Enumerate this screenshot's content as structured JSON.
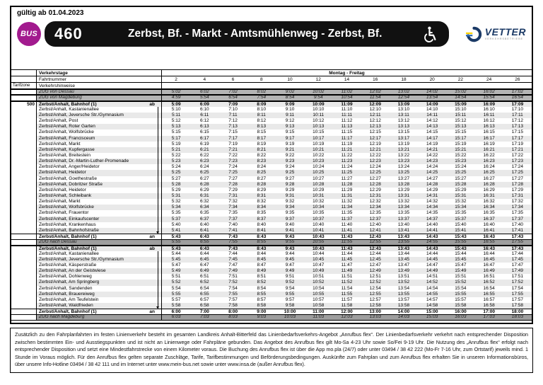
{
  "page": {
    "valid_from": "gültig ab 01.04.2023"
  },
  "header": {
    "bus_badge": "BUS",
    "line_number": "460",
    "route_title": "Zerbst, Bf. - Markt - Amtsmühlenweg - Zerbst, Bf.",
    "wheelchair_icon": "wheelchair-accessible",
    "operator_name": "VETTER",
    "operator_tagline": "VERKEHRSBETRIEBE"
  },
  "colors": {
    "badge_magenta": "#a21a8e",
    "bar_black": "#111111",
    "navy": "#1b3a66",
    "stripe_yellow": "#ffd200",
    "stripe_blue": "#2e6db6",
    "row_alt_gray": "#e9e9e9",
    "train_row_gray": "#b4b4b4",
    "train_row_dark_gray": "#9e9e9e"
  },
  "timetable": {
    "labels": {
      "verkehrstage": "Verkehrstage",
      "fahrtnummer": "Fahrtnummer",
      "tarifzone": "Tarifzone",
      "verkehrshinweise": "Verkehrshinweise"
    },
    "service_days": "Montag - Freitag",
    "trip_numbers": [
      "2",
      "4",
      "6",
      "8",
      "10",
      "12",
      "14",
      "16",
      "18",
      "20",
      "22",
      "24",
      "26"
    ],
    "rows": [
      {
        "type": "train",
        "label": "ZUG von Dessau",
        "times": [
          "5:02",
          "6:02",
          "7:02",
          "8:02",
          "9:02",
          "10:02",
          "11:02",
          "12:02",
          "13:02",
          "14:02",
          "15:02",
          "16:02",
          "17:02"
        ]
      },
      {
        "type": "train",
        "label": "ZUG von Magdeburg",
        "times": [
          "4:59",
          "5:54",
          "6:54",
          "7:54",
          "8:54",
          "9:54",
          "10:54",
          "11:54",
          "12:54",
          "13:54",
          "14:54",
          "15:54",
          "16:54"
        ]
      },
      {
        "type": "stop",
        "label": "Zerbst/Anhalt, Bahnhof (1)",
        "tag": "ab",
        "bold": true,
        "zone": "500",
        "times": [
          "5:09",
          "6:09",
          "7:09",
          "8:09",
          "9:09",
          "10:09",
          "11:09",
          "12:09",
          "13:09",
          "14:09",
          "15:09",
          "16:09",
          "17:09"
        ]
      },
      {
        "type": "stop",
        "label": "Zerbst/Anhalt, Kastanienallee",
        "times": [
          "5:10",
          "6:10",
          "7:10",
          "8:10",
          "9:10",
          "10:10",
          "11:10",
          "12:10",
          "13:10",
          "14:10",
          "15:10",
          "16:10",
          "17:10"
        ]
      },
      {
        "type": "stop",
        "label": "Zerbst/Anhalt, Jeversche Str./Gymnasium",
        "times": [
          "5:11",
          "6:11",
          "7:11",
          "8:11",
          "9:11",
          "10:11",
          "11:11",
          "12:11",
          "13:11",
          "14:11",
          "15:11",
          "16:11",
          "17:11"
        ]
      },
      {
        "type": "stop",
        "label": "Zerbst/Anhalt, Post",
        "times": [
          "5:12",
          "6:12",
          "7:12",
          "8:12",
          "9:12",
          "10:12",
          "11:12",
          "12:12",
          "13:12",
          "14:12",
          "15:12",
          "16:12",
          "17:12"
        ]
      },
      {
        "type": "stop",
        "label": "Zerbst/Anhalt, Roter Garten",
        "times": [
          "5:13",
          "6:13",
          "7:13",
          "8:13",
          "9:13",
          "10:13",
          "11:13",
          "12:13",
          "13:13",
          "14:13",
          "15:13",
          "16:13",
          "17:13"
        ]
      },
      {
        "type": "stop",
        "label": "Zerbst/Anhalt, Wolfsbrücke",
        "times": [
          "5:15",
          "6:15",
          "7:15",
          "8:15",
          "9:15",
          "10:15",
          "11:15",
          "12:15",
          "13:15",
          "14:15",
          "15:15",
          "16:15",
          "17:15"
        ]
      },
      {
        "type": "stop",
        "label": "Zerbst/Anhalt, Francisceum",
        "times": [
          "5:17",
          "6:17",
          "7:17",
          "8:17",
          "9:17",
          "10:17",
          "11:17",
          "12:17",
          "13:17",
          "14:17",
          "15:17",
          "16:17",
          "17:17"
        ]
      },
      {
        "type": "stop",
        "label": "Zerbst/Anhalt, Markt",
        "times": [
          "5:19",
          "6:19",
          "7:19",
          "8:19",
          "9:19",
          "10:19",
          "11:19",
          "12:19",
          "13:19",
          "14:19",
          "15:19",
          "16:19",
          "17:19"
        ]
      },
      {
        "type": "stop",
        "label": "Zerbst/Anhalt, Kupfergasse",
        "times": [
          "5:21",
          "6:21",
          "7:21",
          "8:21",
          "9:21",
          "10:21",
          "11:21",
          "12:21",
          "13:21",
          "14:21",
          "15:21",
          "16:21",
          "17:21"
        ]
      },
      {
        "type": "stop",
        "label": "Zerbst/Anhalt, Breitestein",
        "times": [
          "5:22",
          "6:22",
          "7:22",
          "8:22",
          "9:22",
          "10:22",
          "11:22",
          "12:22",
          "13:22",
          "14:22",
          "15:22",
          "16:22",
          "17:22"
        ]
      },
      {
        "type": "stop",
        "label": "Zerbst/Anhalt, Dr.-Martin-Luther-Promenade",
        "times": [
          "5:23",
          "6:23",
          "7:23",
          "8:23",
          "9:23",
          "10:23",
          "11:23",
          "12:23",
          "13:23",
          "14:23",
          "15:23",
          "16:23",
          "17:23"
        ]
      },
      {
        "type": "stop",
        "label": "Zerbst/Anhalt, Anger/Heidetor",
        "times": [
          "5:24",
          "6:24",
          "7:24",
          "8:24",
          "9:24",
          "10:24",
          "11:24",
          "12:24",
          "13:24",
          "14:24",
          "15:24",
          "16:24",
          "17:24"
        ]
      },
      {
        "type": "stop",
        "label": "Zerbst/Anhalt, Heidetor",
        "times": [
          "5:25",
          "6:25",
          "7:25",
          "8:25",
          "9:25",
          "10:25",
          "11:25",
          "12:25",
          "13:25",
          "14:25",
          "15:25",
          "16:25",
          "17:25"
        ]
      },
      {
        "type": "stop",
        "label": "Zerbst/Anhalt, Goethestraße",
        "times": [
          "5:27",
          "6:27",
          "7:27",
          "8:27",
          "9:27",
          "10:27",
          "11:27",
          "12:27",
          "13:27",
          "14:27",
          "15:27",
          "16:27",
          "17:27"
        ]
      },
      {
        "type": "stop",
        "label": "Zerbst/Anhalt, Dobritzer Straße",
        "times": [
          "5:28",
          "6:28",
          "7:28",
          "8:28",
          "9:28",
          "10:28",
          "11:28",
          "12:28",
          "13:28",
          "14:28",
          "15:28",
          "16:28",
          "17:28"
        ]
      },
      {
        "type": "stop",
        "label": "Zerbst/Anhalt, Heidetor",
        "times": [
          "5:29",
          "6:29",
          "7:29",
          "8:29",
          "9:29",
          "10:29",
          "11:29",
          "12:29",
          "13:29",
          "14:29",
          "15:29",
          "16:29",
          "17:29"
        ]
      },
      {
        "type": "stop",
        "label": "Zerbst/Anhalt, Schleibank",
        "times": [
          "5:31",
          "6:31",
          "7:31",
          "8:31",
          "9:31",
          "10:31",
          "11:31",
          "12:31",
          "13:31",
          "14:31",
          "15:31",
          "16:31",
          "17:31"
        ]
      },
      {
        "type": "stop",
        "label": "Zerbst/Anhalt, Markt",
        "times": [
          "5:32",
          "6:32",
          "7:32",
          "8:32",
          "9:32",
          "10:32",
          "11:32",
          "12:32",
          "13:32",
          "14:32",
          "15:32",
          "16:32",
          "17:32"
        ]
      },
      {
        "type": "stop",
        "label": "Zerbst/Anhalt, Wolfsbrücke",
        "times": [
          "5:34",
          "6:34",
          "7:34",
          "8:34",
          "9:34",
          "10:34",
          "11:34",
          "12:34",
          "13:34",
          "14:34",
          "15:34",
          "16:34",
          "17:34"
        ]
      },
      {
        "type": "stop",
        "label": "Zerbst/Anhalt, Frauentor",
        "times": [
          "5:35",
          "6:35",
          "7:35",
          "8:35",
          "9:35",
          "10:35",
          "11:35",
          "12:35",
          "13:35",
          "14:35",
          "15:35",
          "16:35",
          "17:35"
        ]
      },
      {
        "type": "stop",
        "label": "Zerbst/Anhalt, Einkaufscenter",
        "times": [
          "5:37",
          "6:37",
          "7:37",
          "8:37",
          "9:37",
          "10:37",
          "11:37",
          "12:37",
          "13:37",
          "14:37",
          "15:37",
          "16:37",
          "17:37"
        ]
      },
      {
        "type": "stop",
        "label": "Zerbst/Anhalt, Krankenhaus",
        "times": [
          "5:40",
          "6:40",
          "7:40",
          "8:40",
          "9:40",
          "10:40",
          "11:40",
          "12:40",
          "13:40",
          "14:40",
          "15:40",
          "16:40",
          "17:40"
        ]
      },
      {
        "type": "stop",
        "label": "Zerbst/Anhalt, Bahnhofstraße",
        "arrow": true,
        "times": [
          "5:41",
          "6:41",
          "7:41",
          "8:41",
          "9:41",
          "10:41",
          "11:41",
          "12:41",
          "13:41",
          "14:41",
          "15:41",
          "16:41",
          "17:41"
        ]
      },
      {
        "type": "stop",
        "label": "Zerbst/Anhalt, Bahnhof (1)",
        "tag": "an",
        "bold": true,
        "times": [
          "5:43",
          "6:43",
          "7:43",
          "8:43",
          "9:43",
          "10:43",
          "11:43",
          "12:43",
          "13:43",
          "14:43",
          "15:43",
          "16:43",
          "17:43"
        ]
      },
      {
        "type": "train",
        "dark": true,
        "label": "ZUG nach Dessau",
        "times": [
          "5:55",
          "6:55",
          "7:55",
          "8:55",
          "9:55",
          "10:55",
          "11:55",
          "12:55",
          "13:55",
          "14:55",
          "15:55",
          "16:55",
          "17:55"
        ]
      },
      {
        "type": "stop",
        "label": "Zerbst/Anhalt, Bahnhof (1)",
        "tag": "ab",
        "bold": true,
        "times": [
          "5:43",
          "6:43",
          "7:43",
          "8:43",
          "9:43",
          "10:43",
          "11:43",
          "12:43",
          "13:43",
          "14:43",
          "15:43",
          "16:43",
          "17:43"
        ]
      },
      {
        "type": "stop",
        "label": "Zerbst/Anhalt, Kastanienallee",
        "times": [
          "5:44",
          "6:44",
          "7:44",
          "8:44",
          "9:44",
          "10:44",
          "11:44",
          "12:44",
          "13:44",
          "14:44",
          "15:44",
          "16:44",
          "17:44"
        ]
      },
      {
        "type": "stop",
        "label": "Zerbst/Anhalt, Jeversche Str./Gymnasium",
        "times": [
          "5:45",
          "6:45",
          "7:45",
          "8:45",
          "9:45",
          "10:45",
          "11:45",
          "12:45",
          "13:45",
          "14:45",
          "15:45",
          "16:45",
          "17:45"
        ]
      },
      {
        "type": "stop",
        "label": "Zerbst/Anhalt, Käsperstraße",
        "times": [
          "5:47",
          "6:47",
          "7:47",
          "8:47",
          "9:47",
          "10:47",
          "11:47",
          "12:47",
          "13:47",
          "14:47",
          "15:47",
          "16:47",
          "17:47"
        ]
      },
      {
        "type": "stop",
        "label": "Zerbst/Anhalt, An der Geistwiese",
        "times": [
          "5:49",
          "6:49",
          "7:49",
          "8:49",
          "9:49",
          "10:49",
          "11:49",
          "12:49",
          "13:49",
          "14:49",
          "15:49",
          "16:49",
          "17:49"
        ]
      },
      {
        "type": "stop",
        "label": "Zerbst/Anhalt, Dohlenweg",
        "times": [
          "5:51",
          "6:51",
          "7:51",
          "8:51",
          "9:51",
          "10:51",
          "11:51",
          "12:51",
          "13:51",
          "14:51",
          "15:51",
          "16:51",
          "17:51"
        ]
      },
      {
        "type": "stop",
        "label": "Zerbst/Anhalt, Am Springberg",
        "times": [
          "5:52",
          "6:52",
          "7:52",
          "8:52",
          "9:52",
          "10:52",
          "11:52",
          "12:52",
          "13:52",
          "14:52",
          "15:52",
          "16:52",
          "17:52"
        ]
      },
      {
        "type": "stop",
        "label": "Zerbst/Anhalt, Sandenden",
        "times": [
          "5:54",
          "6:54",
          "7:54",
          "8:54",
          "9:54",
          "10:54",
          "11:54",
          "12:54",
          "13:54",
          "14:54",
          "15:54",
          "16:54",
          "17:54"
        ]
      },
      {
        "type": "stop",
        "label": "Zerbst/Anhalt, Brauereiweg",
        "times": [
          "5:55",
          "6:55",
          "7:55",
          "8:55",
          "9:55",
          "10:55",
          "11:55",
          "12:55",
          "13:55",
          "14:55",
          "15:55",
          "16:55",
          "17:55"
        ]
      },
      {
        "type": "stop",
        "label": "Zerbst/Anhalt, Am Teufelstein",
        "times": [
          "5:57",
          "6:57",
          "7:57",
          "8:57",
          "9:57",
          "10:57",
          "11:57",
          "12:57",
          "13:57",
          "14:57",
          "15:57",
          "16:57",
          "17:57"
        ]
      },
      {
        "type": "stop",
        "label": "Zerbst/Anhalt, Waldfrieden",
        "arrow": true,
        "times": [
          "5:58",
          "6:58",
          "7:58",
          "8:58",
          "9:58",
          "10:58",
          "11:58",
          "12:58",
          "13:58",
          "14:58",
          "15:58",
          "16:58",
          "17:58"
        ]
      },
      {
        "type": "stop",
        "label": "Zerbst/Anhalt, Bahnhof (1)",
        "tag": "an",
        "bold": true,
        "times": [
          "6:00",
          "7:00",
          "8:00",
          "9:00",
          "10:00",
          "11:00",
          "12:00",
          "13:00",
          "14:00",
          "15:00",
          "16:00",
          "17:00",
          "18:00"
        ]
      },
      {
        "type": "train",
        "dark": true,
        "label": "ZUG nach Magdeburg",
        "times": [
          "6:03",
          "7:03",
          "8:03",
          "9:03",
          "10:03",
          "11:03",
          "12:03",
          "13:03",
          "14:03",
          "15:03",
          "16:03",
          "17:03",
          "18:03"
        ]
      }
    ]
  },
  "footer": {
    "text": "Zusätzlich zu den Fahrplanfahrten im festen Linienverkehr besteht im gesamten Landkreis Anhalt-Bitterfeld das Linienbedarfsverkehrs-Angebot „Anrufbus flex“. Der Linienbedarfsverkehr verkehrt nach entsprechender Disposition zwischen bestimmten Ein- und Ausstiegspunkten und ist nicht an Linienwege oder Fahrpläne gebunden. Das Angebot des Anrufbus flex gilt Mo-Sa 4-23 Uhr sowie So/Fei 9-19 Uhr. Die Nutzung des „Anrufbus flex“ erfolgt nach entsprechender Disposition und setzt eine Mindestfahrstrecke von einem Kilometer voraus. Die Buchung des Anrufbus flex ist über die App mo.pla (24/7) oder unter 03494 / 38 42 222 (Mo-Fr 7-16 Uhr, zum Ortstarif) jeweils mind. 1 Stunde im Voraus möglich. Für den Anrufbus flex gelten separate Zuschläge, Tarife, Tarifbestimmungen und Beförderungsbedingungen. Auskünfte zum Fahrplan und zum Anrufbus flex erhalten Sie in unseren Informationsbüros, über unsere Info-Hotline 03494 / 38 42 111 und im Internet unter www.mein-bus.net sowie unter www.insa.de (außer Anrufbus flex)."
  }
}
